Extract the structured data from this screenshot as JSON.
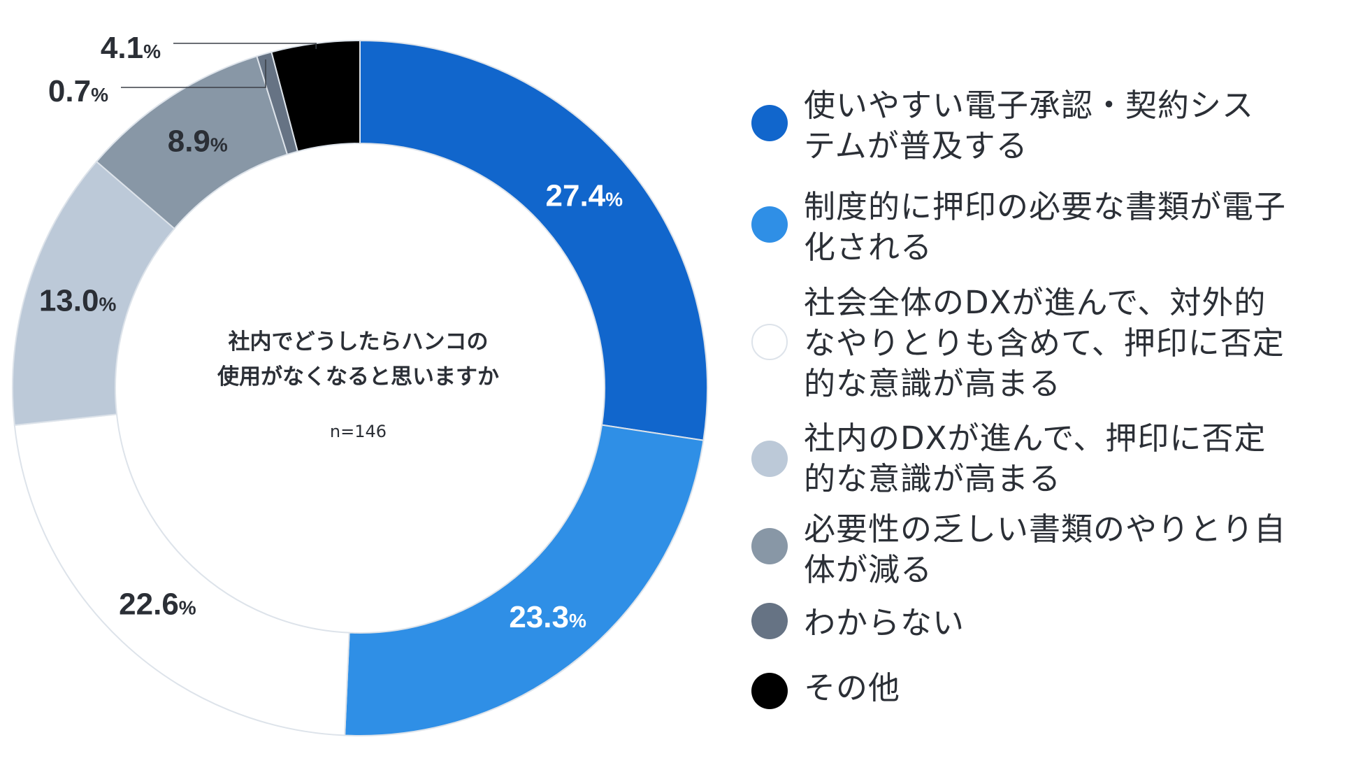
{
  "chart_data": {
    "type": "pie",
    "variant": "donut",
    "center_title_lines": [
      "社内でどうしたらハンコの",
      "使用がなくなると思いますか"
    ],
    "sample_size": "n=146",
    "unit": "%",
    "slices": [
      {
        "label_lines": [
          "使いやすい電子承認・契約シス",
          "テムが普及する"
        ],
        "value": 27.4,
        "value_text": "27.4",
        "color": "#1166cc",
        "label_color": "#ffffff"
      },
      {
        "label_lines": [
          "制度的に押印の必要な書類が電子",
          "化される"
        ],
        "value": 23.3,
        "value_text": "23.3",
        "color": "#2f8fe6",
        "label_color": "#ffffff"
      },
      {
        "label_lines": [
          "社会全体のDXが進んで、対外的",
          "なやりとりも含めて、押印に否定",
          "的な意識が高まる"
        ],
        "value": 22.6,
        "value_text": "22.6",
        "color": "#ffffff",
        "label_color": "#2b2f36"
      },
      {
        "label_lines": [
          "社内のDXが進んで、押印に否定",
          "的な意識が高まる"
        ],
        "value": 13.0,
        "value_text": "13.0",
        "color": "#bcc9d8",
        "label_color": "#2b2f36"
      },
      {
        "label_lines": [
          "必要性の乏しい書類のやりとり自",
          "体が減る"
        ],
        "value": 8.9,
        "value_text": "8.9",
        "color": "#8897a6",
        "label_color": "#2b2f36"
      },
      {
        "label_lines": [
          "わからない"
        ],
        "value": 0.7,
        "value_text": "0.7",
        "color": "#667384",
        "label_color": "#2b2f36"
      },
      {
        "label_lines": [
          "その他"
        ],
        "value": 4.1,
        "value_text": "4.1",
        "color": "#000000",
        "label_color": "#2b2f36"
      }
    ],
    "legend_position": "right"
  }
}
